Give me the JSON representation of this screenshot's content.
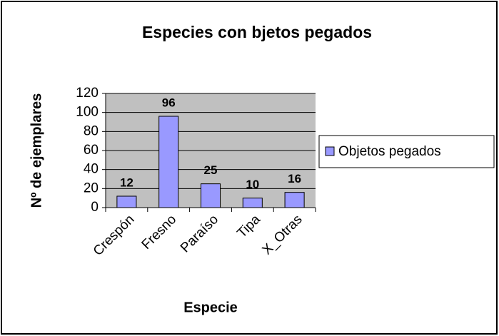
{
  "chart_data": {
    "type": "bar",
    "title": "Especies con bjetos pegados",
    "x_label": "Especie",
    "y_label": "Nº de ejemplares",
    "categories": [
      "Crespón",
      "Fresno",
      "Paraíso",
      "Tipa",
      "X_Otras"
    ],
    "series": [
      {
        "name": "Objetos pegados",
        "color": "#9999ff",
        "values": [
          12,
          96,
          25,
          10,
          16
        ]
      }
    ],
    "ylim": [
      0,
      120
    ],
    "yticks": [
      0,
      20,
      40,
      60,
      80,
      100,
      120
    ],
    "grid": true,
    "legend": "right"
  }
}
